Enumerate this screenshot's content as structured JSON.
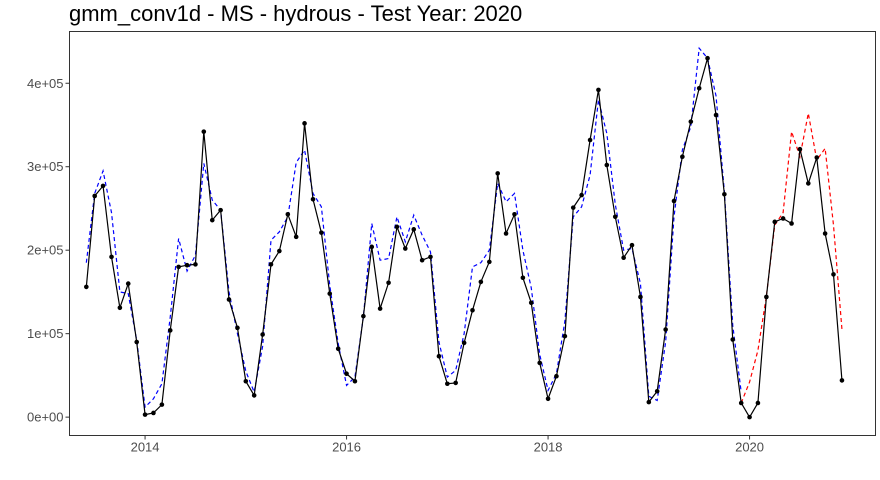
{
  "chart_data": {
    "type": "line",
    "title": "gmm_conv1d - MS - hydrous - Test Year: 2020",
    "xlabel": "",
    "ylabel": "",
    "xlim": [
      2013.25,
      2021.25
    ],
    "ylim": [
      -22000,
      462000
    ],
    "x_ticks": [
      {
        "value": 2014,
        "label": "2014"
      },
      {
        "value": 2016,
        "label": "2016"
      },
      {
        "value": 2018,
        "label": "2018"
      },
      {
        "value": 2020,
        "label": "2020"
      }
    ],
    "y_ticks": [
      {
        "value": 0,
        "label": "0e+00"
      },
      {
        "value": 100000,
        "label": "1e+05"
      },
      {
        "value": 200000,
        "label": "2e+05"
      },
      {
        "value": 300000,
        "label": "3e+05"
      },
      {
        "value": 400000,
        "label": "4e+05"
      }
    ],
    "grid": false,
    "legend": "none",
    "colors": {
      "actual": "#000000",
      "fitted": "#0000ff",
      "forecast": "#ff0000"
    },
    "series": [
      {
        "id": "actual",
        "style": "solid-with-points",
        "x": [
          2013.417,
          2013.5,
          2013.583,
          2013.667,
          2013.75,
          2013.833,
          2013.917,
          2014.0,
          2014.083,
          2014.167,
          2014.25,
          2014.333,
          2014.417,
          2014.5,
          2014.583,
          2014.667,
          2014.75,
          2014.833,
          2014.917,
          2015.0,
          2015.083,
          2015.167,
          2015.25,
          2015.333,
          2015.417,
          2015.5,
          2015.583,
          2015.667,
          2015.75,
          2015.833,
          2015.917,
          2016.0,
          2016.083,
          2016.167,
          2016.25,
          2016.333,
          2016.417,
          2016.5,
          2016.583,
          2016.667,
          2016.75,
          2016.833,
          2016.917,
          2017.0,
          2017.083,
          2017.167,
          2017.25,
          2017.333,
          2017.417,
          2017.5,
          2017.583,
          2017.667,
          2017.75,
          2017.833,
          2017.917,
          2018.0,
          2018.083,
          2018.167,
          2018.25,
          2018.333,
          2018.417,
          2018.5,
          2018.583,
          2018.667,
          2018.75,
          2018.833,
          2018.917,
          2019.0,
          2019.083,
          2019.167,
          2019.25,
          2019.333,
          2019.417,
          2019.5,
          2019.583,
          2019.667,
          2019.75,
          2019.833,
          2019.917,
          2020.0,
          2020.083,
          2020.167,
          2020.25,
          2020.333,
          2020.417,
          2020.5,
          2020.583,
          2020.667,
          2020.75,
          2020.833,
          2020.917
        ],
        "values": [
          156000,
          265000,
          277000,
          192000,
          131000,
          160000,
          90000,
          3000,
          5000,
          15000,
          104000,
          180000,
          182000,
          183000,
          342000,
          236000,
          248000,
          141000,
          107000,
          43000,
          26000,
          99000,
          183000,
          199000,
          243000,
          216000,
          352000,
          261000,
          221000,
          148000,
          82000,
          52000,
          43000,
          121000,
          204000,
          130000,
          161000,
          228000,
          202000,
          225000,
          188000,
          192000,
          73000,
          40000,
          41000,
          89000,
          128000,
          162000,
          186000,
          292000,
          220000,
          243000,
          167000,
          137000,
          65000,
          22000,
          49000,
          97000,
          251000,
          266000,
          332000,
          392000,
          302000,
          240000,
          191000,
          206000,
          144000,
          18000,
          31000,
          105000,
          259000,
          312000,
          354000,
          394000,
          430000,
          362000,
          267000,
          93000,
          17000,
          0,
          17000,
          144000,
          234000,
          238000,
          232000,
          321000,
          280000,
          311000,
          220000,
          171000,
          44000
        ]
      },
      {
        "id": "fitted",
        "style": "dashed",
        "x": [
          2013.417,
          2013.5,
          2013.583,
          2013.667,
          2013.75,
          2013.833,
          2013.917,
          2014.0,
          2014.083,
          2014.167,
          2014.25,
          2014.333,
          2014.417,
          2014.5,
          2014.583,
          2014.667,
          2014.75,
          2014.833,
          2014.917,
          2015.0,
          2015.083,
          2015.167,
          2015.25,
          2015.333,
          2015.417,
          2015.5,
          2015.583,
          2015.667,
          2015.75,
          2015.833,
          2015.917,
          2016.0,
          2016.083,
          2016.167,
          2016.25,
          2016.333,
          2016.417,
          2016.5,
          2016.583,
          2016.667,
          2016.75,
          2016.833,
          2016.917,
          2017.0,
          2017.083,
          2017.167,
          2017.25,
          2017.333,
          2017.417,
          2017.5,
          2017.583,
          2017.667,
          2017.75,
          2017.833,
          2017.917,
          2018.0,
          2018.083,
          2018.167,
          2018.25,
          2018.333,
          2018.417,
          2018.5,
          2018.583,
          2018.667,
          2018.75,
          2018.833,
          2018.917,
          2019.0,
          2019.083,
          2019.167,
          2019.25,
          2019.333,
          2019.417,
          2019.5,
          2019.583,
          2019.667,
          2019.75,
          2019.833,
          2019.917
        ],
        "values": [
          185000,
          268000,
          295000,
          245000,
          150000,
          148000,
          92000,
          12000,
          22000,
          40000,
          120000,
          214000,
          175000,
          194000,
          304000,
          260000,
          248000,
          150000,
          100000,
          55000,
          30000,
          85000,
          212000,
          222000,
          240000,
          305000,
          320000,
          268000,
          252000,
          158000,
          88000,
          38000,
          48000,
          120000,
          232000,
          188000,
          190000,
          240000,
          210000,
          242000,
          218000,
          198000,
          90000,
          48000,
          56000,
          100000,
          180000,
          185000,
          200000,
          280000,
          258000,
          268000,
          200000,
          155000,
          75000,
          32000,
          52000,
          115000,
          240000,
          252000,
          290000,
          380000,
          340000,
          255000,
          200000,
          202000,
          160000,
          25000,
          20000,
          90000,
          240000,
          320000,
          348000,
          442000,
          430000,
          385000,
          270000,
          110000,
          30000
        ]
      },
      {
        "id": "forecast",
        "style": "dashed",
        "x": [
          2019.917,
          2020.0,
          2020.083,
          2020.167,
          2020.25,
          2020.333,
          2020.417,
          2020.5,
          2020.583,
          2020.667,
          2020.75,
          2020.833,
          2020.917
        ],
        "values": [
          17000,
          42000,
          80000,
          145000,
          230000,
          245000,
          342000,
          312000,
          364000,
          308000,
          322000,
          230000,
          105000
        ]
      }
    ]
  }
}
